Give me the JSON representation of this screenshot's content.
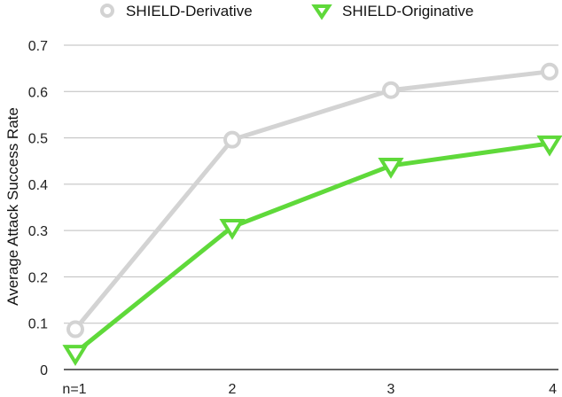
{
  "chart_data": {
    "type": "line",
    "title": "",
    "xlabel": "",
    "ylabel": "Average Attack Success Rate",
    "categories": [
      "n=1",
      "2",
      "3",
      "4"
    ],
    "ylim": [
      0,
      0.7
    ],
    "yticks": [
      "0",
      "0.1",
      "0.2",
      "0.3",
      "0.4",
      "0.5",
      "0.6",
      "0.7"
    ],
    "grid": true,
    "legend_position": "top",
    "series": [
      {
        "name": "SHIELD-Derivative",
        "values": [
          0.087,
          0.496,
          0.603,
          0.643
        ],
        "color": "#d3d3d3",
        "marker": "circle"
      },
      {
        "name": "SHIELD-Originative",
        "values": [
          0.036,
          0.308,
          0.44,
          0.488
        ],
        "color": "#5fd93a",
        "marker": "triangle-down"
      }
    ]
  }
}
